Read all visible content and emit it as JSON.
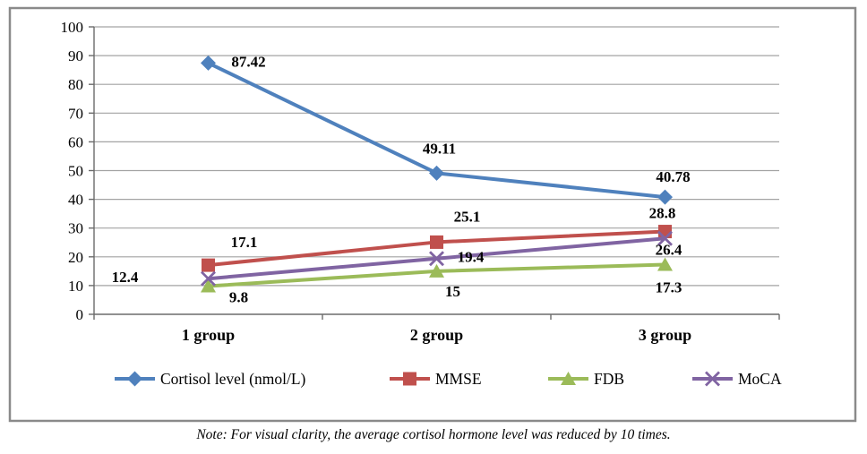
{
  "chart_data": {
    "type": "line",
    "categories": [
      "1 group",
      "2 group",
      "3 group"
    ],
    "series": [
      {
        "name": "Cortisol level (nmol/L)",
        "color": "#4F81BD",
        "marker": "diamond",
        "values": [
          87.42,
          49.11,
          40.78
        ],
        "labels": [
          "87.42",
          "49.11",
          "40.78"
        ],
        "label_offsets": [
          [
            45,
            -2
          ],
          [
            3,
            -28
          ],
          [
            9,
            -23
          ]
        ]
      },
      {
        "name": "MMSE",
        "color": "#C0504D",
        "marker": "square",
        "values": [
          17.1,
          25.1,
          28.8
        ],
        "labels": [
          "17.1",
          "25.1",
          "28.8"
        ],
        "label_offsets": [
          [
            40,
            -26
          ],
          [
            34,
            -29
          ],
          [
            -3,
            -21
          ]
        ]
      },
      {
        "name": "FDB",
        "color": "#9BBB59",
        "marker": "triangle",
        "values": [
          9.8,
          15,
          17.3
        ],
        "labels": [
          "9.8",
          "15",
          "17.3"
        ],
        "label_offsets": [
          [
            34,
            12
          ],
          [
            18,
            22
          ],
          [
            4,
            25
          ]
        ]
      },
      {
        "name": "MoCA",
        "color": "#8064A2",
        "marker": "x",
        "values": [
          12.4,
          19.4,
          26.4
        ],
        "labels": [
          "12.4",
          "19.4",
          "26.4"
        ],
        "label_offsets": [
          [
            -93,
            -2
          ],
          [
            38,
            -2
          ],
          [
            4,
            12
          ]
        ]
      }
    ],
    "title": "",
    "xlabel": "",
    "ylabel": "",
    "ylim": [
      0,
      100
    ],
    "yticks": [
      0,
      10,
      20,
      30,
      40,
      50,
      60,
      70,
      80,
      90,
      100
    ],
    "grid": true,
    "legend_position": "bottom"
  },
  "note": {
    "text": "Note: For visual clarity, the average cortisol hormone level was reduced by 10 times."
  },
  "colors": {
    "grid": "#A3A3A3",
    "axis": "#6B6B6B",
    "border": "#8A8A8A",
    "text": "#000000",
    "background": "#FFFFFF"
  }
}
